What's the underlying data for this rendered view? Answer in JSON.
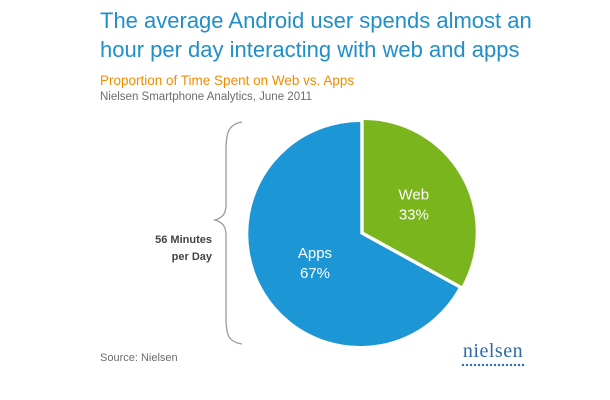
{
  "header": {
    "title_line1": "The average Android user spends almost an",
    "title_line2": "hour per day interacting with web and apps",
    "subtitle": "Proportion of Time Spent on Web vs. Apps",
    "caption": "Nielsen Smartphone Analytics, June 2011"
  },
  "side_label": {
    "line1": "56 Minutes",
    "line2": "per Day"
  },
  "footer": {
    "source": "Source: Nielsen",
    "logo_text": "nielsen"
  },
  "chart_data": {
    "type": "pie",
    "title": "Proportion of Time Spent on Web vs. Apps",
    "slices": [
      {
        "label": "Web",
        "value": 33,
        "display": "33%",
        "color": "#7ab51d"
      },
      {
        "label": "Apps",
        "value": 67,
        "display": "67%",
        "color": "#1c96d4"
      }
    ],
    "start_angle_deg": 0,
    "direction": "clockwise",
    "legend": "none"
  }
}
